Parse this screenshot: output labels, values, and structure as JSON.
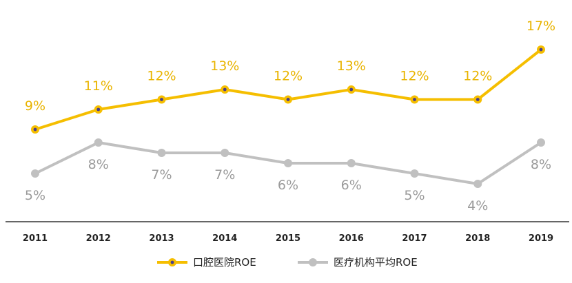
{
  "chart_data": {
    "type": "line",
    "categories": [
      "2011",
      "2012",
      "2013",
      "2014",
      "2015",
      "2016",
      "2017",
      "2018",
      "2019"
    ],
    "series": [
      {
        "name": "口腔医院ROE",
        "values": [
          9,
          11,
          12,
          13,
          12,
          13,
          12,
          12,
          17
        ],
        "labels": [
          "9%",
          "11%",
          "12%",
          "13%",
          "12%",
          "13%",
          "12%",
          "12%",
          "17%"
        ],
        "color": "#F5BE00",
        "marker_color": "#4A3F8C"
      },
      {
        "name": "医疗机构平均ROE",
        "values": [
          5,
          8,
          7,
          7,
          6,
          6,
          5,
          4,
          8
        ],
        "labels": [
          "5%",
          "8%",
          "7%",
          "7%",
          "6%",
          "6%",
          "5%",
          "4%",
          "8%"
        ],
        "color": "#C0C0C0",
        "marker_color": "#C0C0C0"
      }
    ],
    "grid": false,
    "legend_position": "bottom"
  }
}
